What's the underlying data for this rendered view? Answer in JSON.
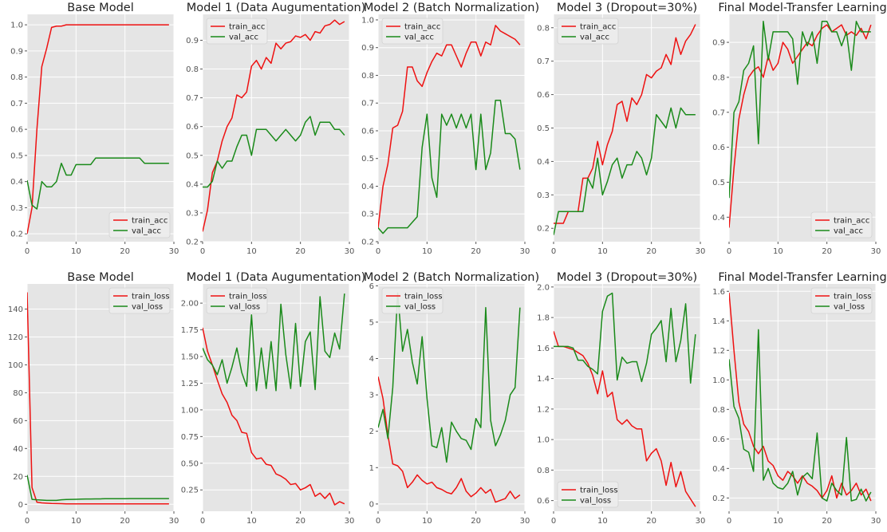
{
  "colors": {
    "train": "#ee1111",
    "val": "#1a8a1a",
    "panel_bg": "#e5e5e5",
    "grid": "#ffffff",
    "text": "#222222",
    "tick": "#555555"
  },
  "chart_data": [
    {
      "type": "line",
      "title": "Base Model",
      "xlim": [
        0,
        30
      ],
      "xticks": [
        0,
        10,
        20,
        30
      ],
      "ylim": [
        0.17,
        1.04
      ],
      "yticks": [
        0.2,
        0.3,
        0.4,
        0.5,
        0.6,
        0.7,
        0.8,
        0.9,
        1.0
      ],
      "ytick_labels": [
        "0.2",
        "0.3",
        "0.4",
        "0.5",
        "0.6",
        "0.7",
        "0.8",
        "0.9",
        "1.0"
      ],
      "legend": "lower-right",
      "grid": true,
      "series": [
        {
          "name": "train_acc",
          "color_key": "train",
          "values": [
            0.2,
            0.3,
            0.6,
            0.84,
            0.91,
            0.99,
            0.995,
            0.995,
            1.0,
            1.0,
            1.0,
            1.0,
            1.0,
            1.0,
            1.0,
            1.0,
            1.0,
            1.0,
            1.0,
            1.0,
            1.0,
            1.0,
            1.0,
            1.0,
            1.0,
            1.0,
            1.0,
            1.0,
            1.0,
            1.0
          ]
        },
        {
          "name": "val_acc",
          "color_key": "val",
          "values": [
            0.405,
            0.31,
            0.295,
            0.4,
            0.38,
            0.38,
            0.4,
            0.47,
            0.425,
            0.425,
            0.465,
            0.465,
            0.465,
            0.465,
            0.49,
            0.49,
            0.49,
            0.49,
            0.49,
            0.49,
            0.49,
            0.49,
            0.49,
            0.49,
            0.47,
            0.47,
            0.47,
            0.47,
            0.47,
            0.47
          ]
        }
      ]
    },
    {
      "type": "line",
      "title": "Model 1 (Data Augumentation)",
      "xlim": [
        0,
        30
      ],
      "xticks": [
        0,
        10,
        20,
        30
      ],
      "ylim": [
        0.2,
        0.99
      ],
      "yticks": [
        0.2,
        0.3,
        0.4,
        0.5,
        0.6,
        0.7,
        0.8,
        0.9
      ],
      "ytick_labels": [
        "0.2",
        "0.3",
        "0.4",
        "0.5",
        "0.6",
        "0.7",
        "0.8",
        "0.9"
      ],
      "legend": "top-left",
      "grid": true,
      "series": [
        {
          "name": "train_acc",
          "color_key": "train",
          "values": [
            0.235,
            0.31,
            0.44,
            0.48,
            0.55,
            0.6,
            0.63,
            0.71,
            0.7,
            0.72,
            0.81,
            0.83,
            0.8,
            0.84,
            0.82,
            0.89,
            0.87,
            0.89,
            0.895,
            0.915,
            0.91,
            0.92,
            0.9,
            0.93,
            0.925,
            0.95,
            0.955,
            0.97,
            0.955,
            0.965
          ]
        },
        {
          "name": "val_acc",
          "color_key": "val",
          "values": [
            0.39,
            0.39,
            0.41,
            0.48,
            0.455,
            0.48,
            0.48,
            0.53,
            0.57,
            0.57,
            0.5,
            0.59,
            0.59,
            0.59,
            0.57,
            0.55,
            0.57,
            0.59,
            0.57,
            0.55,
            0.57,
            0.615,
            0.635,
            0.57,
            0.615,
            0.615,
            0.615,
            0.59,
            0.59,
            0.57
          ]
        }
      ]
    },
    {
      "type": "line",
      "title": "Model 2 (Batch Normalization)",
      "xlim": [
        0,
        30
      ],
      "xticks": [
        0,
        10,
        20,
        30
      ],
      "ylim": [
        0.2,
        1.02
      ],
      "yticks": [
        0.2,
        0.3,
        0.4,
        0.5,
        0.6,
        0.7,
        0.8,
        0.9,
        1.0
      ],
      "ytick_labels": [
        "0.2",
        "0.3",
        "0.4",
        "0.5",
        "0.6",
        "0.7",
        "0.8",
        "0.9",
        "1.0"
      ],
      "legend": "top-left",
      "grid": true,
      "series": [
        {
          "name": "train_acc",
          "color_key": "train",
          "values": [
            0.25,
            0.4,
            0.48,
            0.61,
            0.62,
            0.67,
            0.83,
            0.83,
            0.78,
            0.76,
            0.81,
            0.85,
            0.88,
            0.87,
            0.91,
            0.91,
            0.87,
            0.83,
            0.88,
            0.92,
            0.92,
            0.87,
            0.92,
            0.91,
            0.98,
            0.96,
            0.95,
            0.94,
            0.93,
            0.91
          ]
        },
        {
          "name": "val_acc",
          "color_key": "val",
          "values": [
            0.25,
            0.23,
            0.25,
            0.25,
            0.25,
            0.25,
            0.25,
            0.27,
            0.29,
            0.54,
            0.66,
            0.43,
            0.36,
            0.66,
            0.62,
            0.66,
            0.61,
            0.66,
            0.61,
            0.66,
            0.46,
            0.66,
            0.46,
            0.52,
            0.71,
            0.71,
            0.59,
            0.59,
            0.57,
            0.46
          ]
        }
      ]
    },
    {
      "type": "line",
      "title": "Model 3 (Dropout=30%)",
      "xlim": [
        0,
        30
      ],
      "xticks": [
        0,
        10,
        20,
        30
      ],
      "ylim": [
        0.16,
        0.84
      ],
      "yticks": [
        0.2,
        0.3,
        0.4,
        0.5,
        0.6,
        0.7,
        0.8
      ],
      "ytick_labels": [
        "0.2",
        "0.3",
        "0.4",
        "0.5",
        "0.6",
        "0.7",
        "0.8"
      ],
      "legend": "top-left",
      "grid": true,
      "series": [
        {
          "name": "train_acc",
          "color_key": "train",
          "values": [
            0.215,
            0.215,
            0.215,
            0.25,
            0.25,
            0.25,
            0.35,
            0.35,
            0.38,
            0.46,
            0.39,
            0.45,
            0.49,
            0.57,
            0.58,
            0.52,
            0.59,
            0.57,
            0.6,
            0.66,
            0.65,
            0.67,
            0.68,
            0.72,
            0.69,
            0.77,
            0.72,
            0.76,
            0.78,
            0.81
          ]
        },
        {
          "name": "val_acc",
          "color_key": "val",
          "values": [
            0.18,
            0.25,
            0.25,
            0.25,
            0.25,
            0.25,
            0.25,
            0.35,
            0.32,
            0.41,
            0.3,
            0.34,
            0.39,
            0.41,
            0.35,
            0.39,
            0.39,
            0.43,
            0.41,
            0.36,
            0.41,
            0.54,
            0.52,
            0.5,
            0.56,
            0.5,
            0.56,
            0.54,
            0.54,
            0.54
          ]
        }
      ]
    },
    {
      "type": "line",
      "title": "Final Model-Transfer Learning",
      "xlim": [
        0,
        30
      ],
      "xticks": [
        0,
        10,
        20,
        30
      ],
      "ylim": [
        0.33,
        0.98
      ],
      "yticks": [
        0.4,
        0.5,
        0.6,
        0.7,
        0.8,
        0.9
      ],
      "ytick_labels": [
        "0.4",
        "0.5",
        "0.6",
        "0.7",
        "0.8",
        "0.9"
      ],
      "legend": "lower-right",
      "grid": true,
      "series": [
        {
          "name": "train_acc",
          "color_key": "train",
          "values": [
            0.37,
            0.54,
            0.68,
            0.75,
            0.8,
            0.82,
            0.83,
            0.8,
            0.86,
            0.82,
            0.84,
            0.9,
            0.88,
            0.84,
            0.86,
            0.88,
            0.9,
            0.89,
            0.92,
            0.94,
            0.95,
            0.93,
            0.94,
            0.95,
            0.92,
            0.93,
            0.92,
            0.94,
            0.91,
            0.95
          ]
        },
        {
          "name": "val_acc",
          "color_key": "val",
          "values": [
            0.455,
            0.7,
            0.73,
            0.82,
            0.84,
            0.89,
            0.61,
            0.96,
            0.85,
            0.93,
            0.93,
            0.93,
            0.93,
            0.91,
            0.78,
            0.93,
            0.89,
            0.93,
            0.84,
            0.96,
            0.96,
            0.93,
            0.93,
            0.89,
            0.93,
            0.82,
            0.96,
            0.93,
            0.93,
            0.93
          ]
        }
      ]
    },
    {
      "type": "line",
      "title": "Base Model",
      "xlim": [
        0,
        30
      ],
      "xticks": [
        0,
        10,
        20,
        30
      ],
      "ylim": [
        -5,
        158
      ],
      "yticks": [
        0,
        20,
        40,
        60,
        80,
        100,
        120,
        140
      ],
      "ytick_labels": [
        "0",
        "20",
        "40",
        "60",
        "80",
        "100",
        "120",
        "140"
      ],
      "legend": "top-right",
      "grid": true,
      "series": [
        {
          "name": "train_loss",
          "color_key": "train",
          "values": [
            152,
            12,
            1.5,
            1.0,
            0.8,
            0.6,
            0.5,
            0.4,
            0.3,
            0.3,
            0.3,
            0.3,
            0.3,
            0.3,
            0.3,
            0.3,
            0.3,
            0.3,
            0.3,
            0.3,
            0.3,
            0.3,
            0.3,
            0.3,
            0.3,
            0.3,
            0.3,
            0.3,
            0.3,
            0.3
          ]
        },
        {
          "name": "val_loss",
          "color_key": "val",
          "values": [
            21,
            3.5,
            3.2,
            3.0,
            2.8,
            2.8,
            2.8,
            3.2,
            3.4,
            3.5,
            3.6,
            3.7,
            3.8,
            3.8,
            3.9,
            3.9,
            4.0,
            4.0,
            4.0,
            4.0,
            4.0,
            4.1,
            4.1,
            4.1,
            4.1,
            4.1,
            4.1,
            4.1,
            4.1,
            4.1
          ]
        }
      ]
    },
    {
      "type": "line",
      "title": "Model 1 (Data Augumentation)",
      "xlim": [
        0,
        30
      ],
      "xticks": [
        0,
        10,
        20,
        30
      ],
      "ylim": [
        0.05,
        2.18
      ],
      "yticks": [
        0.25,
        0.5,
        0.75,
        1.0,
        1.25,
        1.5,
        1.75,
        2.0
      ],
      "ytick_labels": [
        "0.25",
        "0.50",
        "0.75",
        "1.00",
        "1.25",
        "1.50",
        "1.75",
        "2.00"
      ],
      "legend": "top-left",
      "grid": true,
      "series": [
        {
          "name": "train_loss",
          "color_key": "train",
          "values": [
            1.77,
            1.55,
            1.42,
            1.28,
            1.15,
            1.07,
            0.95,
            0.9,
            0.79,
            0.78,
            0.6,
            0.54,
            0.55,
            0.49,
            0.48,
            0.4,
            0.38,
            0.35,
            0.3,
            0.31,
            0.25,
            0.27,
            0.3,
            0.19,
            0.22,
            0.17,
            0.22,
            0.11,
            0.14,
            0.12
          ]
        },
        {
          "name": "val_loss",
          "color_key": "val",
          "values": [
            1.58,
            1.47,
            1.42,
            1.33,
            1.47,
            1.25,
            1.4,
            1.58,
            1.35,
            1.22,
            1.89,
            1.18,
            1.58,
            1.2,
            1.64,
            1.18,
            1.99,
            1.52,
            1.2,
            1.81,
            1.22,
            1.64,
            1.73,
            1.19,
            2.06,
            1.55,
            1.49,
            1.72,
            1.57,
            2.09
          ]
        }
      ]
    },
    {
      "type": "line",
      "title": "Model 2 (Batch Normalization)",
      "xlim": [
        0,
        30
      ],
      "xticks": [
        0,
        10,
        20,
        30
      ],
      "ylim": [
        -0.2,
        6.05
      ],
      "yticks": [
        0,
        1,
        2,
        3,
        4,
        5,
        6
      ],
      "ytick_labels": [
        "0",
        "1",
        "2",
        "3",
        "4",
        "5",
        "6"
      ],
      "legend": "top-left",
      "grid": true,
      "series": [
        {
          "name": "train_loss",
          "color_key": "train",
          "values": [
            3.5,
            2.9,
            1.9,
            1.1,
            1.05,
            0.9,
            0.45,
            0.6,
            0.8,
            0.65,
            0.55,
            0.6,
            0.45,
            0.4,
            0.32,
            0.28,
            0.45,
            0.7,
            0.35,
            0.2,
            0.3,
            0.45,
            0.3,
            0.4,
            0.05,
            0.1,
            0.15,
            0.35,
            0.15,
            0.25
          ]
        },
        {
          "name": "val_loss",
          "color_key": "val",
          "values": [
            2.1,
            2.6,
            1.8,
            3.2,
            5.8,
            4.2,
            4.8,
            3.9,
            3.3,
            4.6,
            2.9,
            1.6,
            1.55,
            2.1,
            1.15,
            2.25,
            2.0,
            1.8,
            1.75,
            1.5,
            2.35,
            2.1,
            5.4,
            2.3,
            1.6,
            1.9,
            2.3,
            3.0,
            3.2,
            5.4
          ]
        }
      ]
    },
    {
      "type": "line",
      "title": "Model 3 (Dropout=30%)",
      "xlim": [
        0,
        30
      ],
      "xticks": [
        0,
        10,
        20,
        30
      ],
      "ylim": [
        0.53,
        2.02
      ],
      "yticks": [
        0.6,
        0.8,
        1.0,
        1.2,
        1.4,
        1.6,
        1.8,
        2.0
      ],
      "ytick_labels": [
        "0.6",
        "0.8",
        "1.0",
        "1.2",
        "1.4",
        "1.6",
        "1.8",
        "2.0"
      ],
      "legend": "bottom-left",
      "grid": true,
      "series": [
        {
          "name": "train_loss",
          "color_key": "train",
          "values": [
            1.71,
            1.61,
            1.61,
            1.6,
            1.59,
            1.57,
            1.55,
            1.5,
            1.42,
            1.3,
            1.45,
            1.28,
            1.31,
            1.13,
            1.1,
            1.13,
            1.09,
            1.07,
            1.07,
            0.86,
            0.91,
            0.94,
            0.86,
            0.7,
            0.85,
            0.69,
            0.79,
            0.66,
            0.61,
            0.56
          ]
        },
        {
          "name": "val_loss",
          "color_key": "val",
          "values": [
            1.61,
            1.61,
            1.61,
            1.61,
            1.6,
            1.52,
            1.52,
            1.48,
            1.46,
            1.43,
            1.84,
            1.94,
            1.96,
            1.39,
            1.54,
            1.5,
            1.51,
            1.51,
            1.38,
            1.5,
            1.69,
            1.73,
            1.78,
            1.51,
            1.86,
            1.51,
            1.65,
            1.89,
            1.37,
            1.69
          ]
        }
      ]
    },
    {
      "type": "line",
      "title": "Final Model-Transfer Learning",
      "xlim": [
        0,
        30
      ],
      "xticks": [
        0,
        10,
        20,
        30
      ],
      "ylim": [
        0.11,
        1.65
      ],
      "yticks": [
        0.2,
        0.4,
        0.6,
        0.8,
        1.0,
        1.2,
        1.4,
        1.6
      ],
      "ytick_labels": [
        "0.2",
        "0.4",
        "0.6",
        "0.8",
        "1.0",
        "1.2",
        "1.4",
        "1.6"
      ],
      "legend": "top-right",
      "grid": true,
      "series": [
        {
          "name": "train_loss",
          "color_key": "train",
          "values": [
            1.59,
            1.2,
            0.85,
            0.7,
            0.65,
            0.55,
            0.5,
            0.55,
            0.45,
            0.42,
            0.35,
            0.32,
            0.38,
            0.35,
            0.3,
            0.35,
            0.3,
            0.28,
            0.25,
            0.2,
            0.25,
            0.35,
            0.2,
            0.3,
            0.22,
            0.25,
            0.3,
            0.22,
            0.26,
            0.18
          ]
        },
        {
          "name": "val_loss",
          "color_key": "val",
          "values": [
            1.14,
            0.82,
            0.74,
            0.53,
            0.51,
            0.38,
            1.34,
            0.32,
            0.4,
            0.3,
            0.27,
            0.26,
            0.3,
            0.38,
            0.22,
            0.34,
            0.37,
            0.33,
            0.64,
            0.2,
            0.18,
            0.3,
            0.25,
            0.22,
            0.61,
            0.18,
            0.19,
            0.26,
            0.18,
            0.24
          ]
        }
      ]
    }
  ]
}
